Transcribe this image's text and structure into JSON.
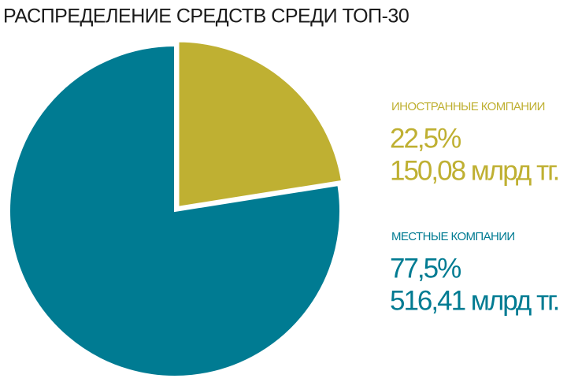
{
  "chart_data": {
    "type": "pie",
    "title": "РАСПРЕДЕЛЕНИЕ СРЕДСТВ СРЕДИ ТОП-30",
    "categories": [
      "ИНОСТРАННЫЕ КОМПАНИИ",
      "МЕСТНЫЕ КОМПАНИИ"
    ],
    "values": [
      22.5,
      77.5
    ],
    "value_labels": [
      "22,5%",
      "77,5%"
    ],
    "amount_labels": [
      "150,08 млрд тг.",
      "516,41 млрд тг."
    ],
    "colors": [
      "#bfb032",
      "#007b92"
    ]
  }
}
